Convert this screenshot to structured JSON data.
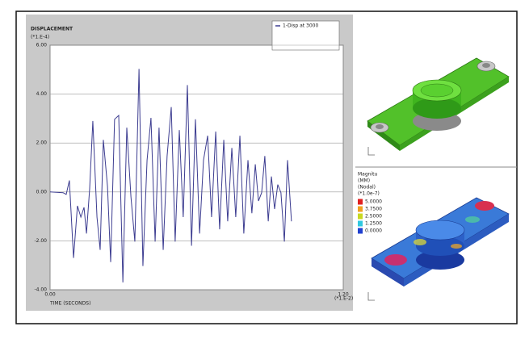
{
  "chart_data": {
    "type": "line",
    "title": "DISPLACEMENT",
    "y_multiplier": "(*1.E-4)",
    "x_multiplier": "(*1.E-2)",
    "x_label": "TIME (SECONDS)",
    "x": [
      0,
      0.053,
      0.066,
      0.079,
      0.096,
      0.112,
      0.126,
      0.139,
      0.149,
      0.162,
      0.175,
      0.192,
      0.205,
      0.218,
      0.235,
      0.248,
      0.264,
      0.281,
      0.298,
      0.314,
      0.331,
      0.347,
      0.364,
      0.38,
      0.397,
      0.413,
      0.43,
      0.446,
      0.463,
      0.479,
      0.496,
      0.512,
      0.529,
      0.545,
      0.562,
      0.579,
      0.595,
      0.612,
      0.628,
      0.645,
      0.661,
      0.678,
      0.694,
      0.711,
      0.727,
      0.744,
      0.76,
      0.777,
      0.793,
      0.81,
      0.826,
      0.84,
      0.853,
      0.866,
      0.879,
      0.893,
      0.906,
      0.919,
      0.932,
      0.945,
      0.959,
      0.972,
      0.988
    ],
    "series": [
      {
        "name": "1-Disp at 3000",
        "color": "#3c3c90",
        "values": [
          0,
          -0.03,
          -0.1,
          0.47,
          -2.7,
          -0.57,
          -1.03,
          -0.63,
          -1.7,
          0.13,
          2.9,
          -1.03,
          -2.37,
          2.13,
          0.23,
          -2.87,
          2.97,
          3.13,
          -3.7,
          2.63,
          -0.2,
          -2.03,
          5.03,
          -3.03,
          1.3,
          3.03,
          -2.03,
          2.63,
          -2.37,
          1.47,
          3.47,
          -2.03,
          2.53,
          -1.03,
          4.37,
          -2.2,
          2.97,
          -1.7,
          1.3,
          2.3,
          -1.03,
          2.47,
          -1.53,
          2.13,
          -1.2,
          1.8,
          -1.03,
          2.3,
          -1.7,
          1.3,
          -0.87,
          1.13,
          -0.37,
          -0.03,
          1.47,
          -1.2,
          0.63,
          -0.7,
          0.3,
          -0.03,
          -2.03,
          1.3,
          -1.2
        ]
      }
    ],
    "xlim": [
      0,
      1.2
    ],
    "ylim": [
      -4,
      6
    ],
    "xticks": [
      {
        "value": 0,
        "label": "0.00"
      },
      {
        "value": 1.2,
        "label": "1.20"
      }
    ],
    "yticks": [
      {
        "value": -4,
        "label": "-4.00"
      },
      {
        "value": -2,
        "label": "-2.00"
      },
      {
        "value": 0,
        "label": "0.00"
      },
      {
        "value": 2,
        "label": "2.00"
      },
      {
        "value": 4,
        "label": "4.00"
      },
      {
        "value": 6,
        "label": "6.00"
      }
    ],
    "grid": true
  },
  "contour_legend": {
    "title": [
      "Magnitu",
      "(MM)",
      "(Nodal)",
      "(*1.0e-7)"
    ],
    "levels": [
      "5.0000",
      "3.7500",
      "2.5000",
      "1.2500",
      "0.0000"
    ],
    "colors": [
      "#e02020",
      "#f0a020",
      "#c8d820",
      "#30c8e0",
      "#2040d0"
    ]
  }
}
